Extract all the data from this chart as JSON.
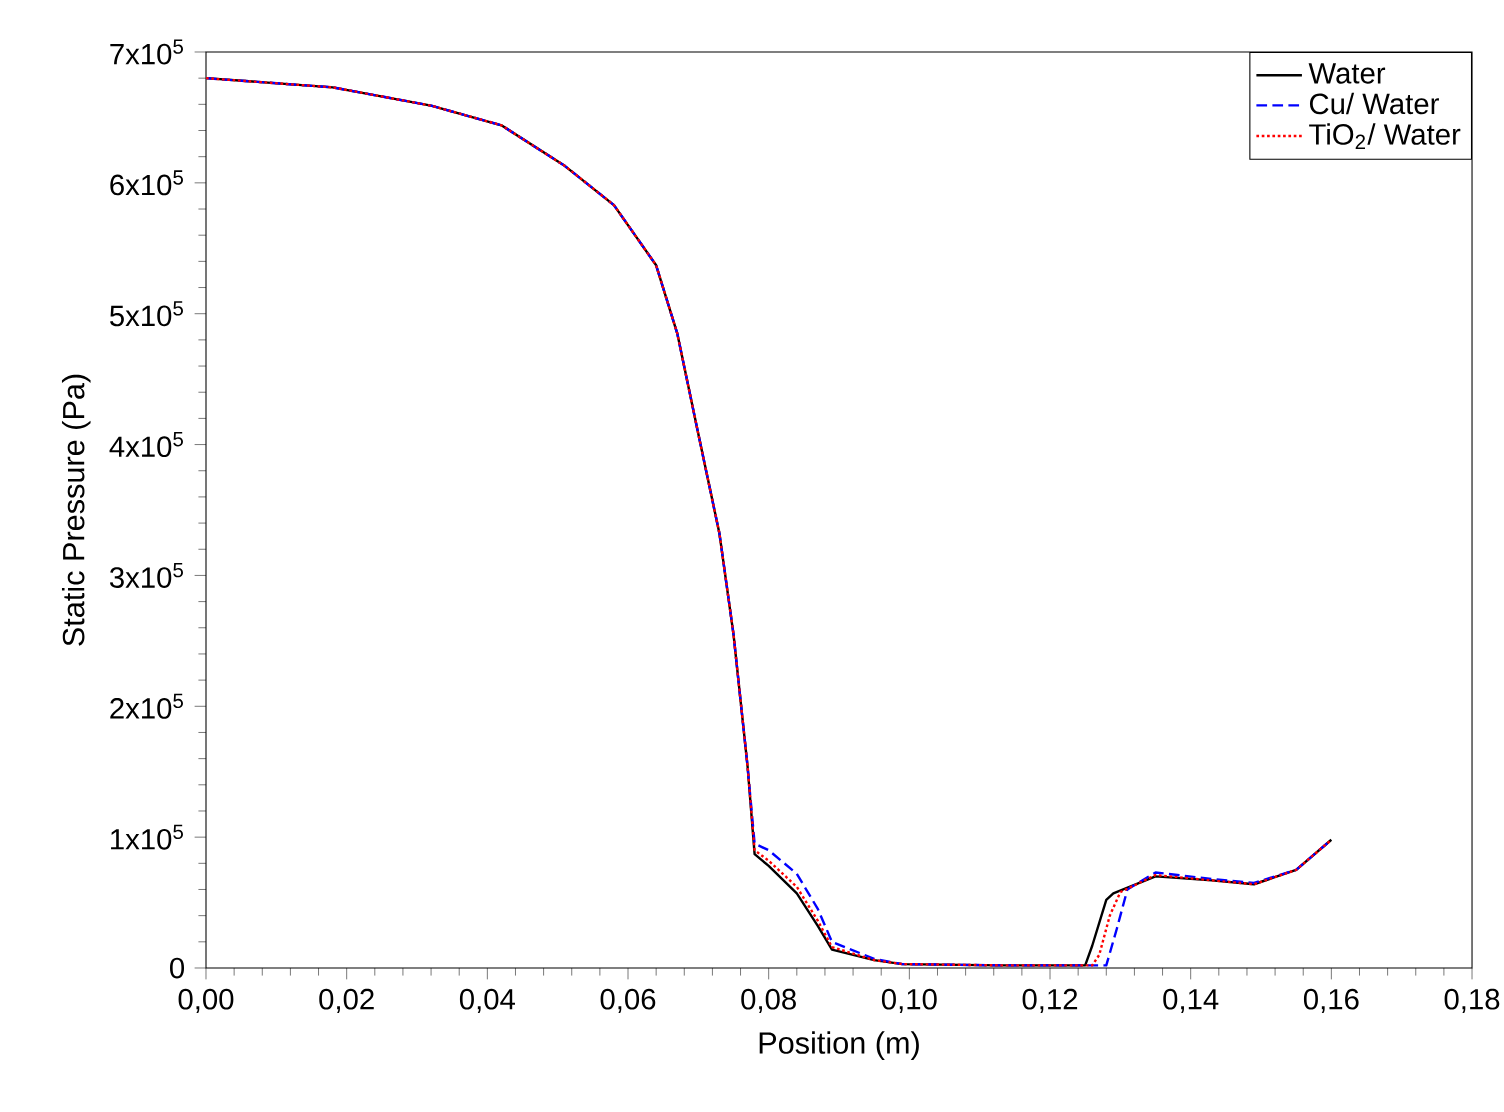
{
  "chart_data": {
    "type": "line",
    "xlabel": "Position (m)",
    "ylabel": "Static Pressure (Pa)",
    "xlim": [
      0,
      0.18
    ],
    "ylim": [
      0,
      700000
    ],
    "xticks": [
      {
        "value": 0,
        "label": "0,00"
      },
      {
        "value": 0.02,
        "label": "0,02"
      },
      {
        "value": 0.04,
        "label": "0,04"
      },
      {
        "value": 0.06,
        "label": "0,06"
      },
      {
        "value": 0.08,
        "label": "0,08"
      },
      {
        "value": 0.1,
        "label": "0,10"
      },
      {
        "value": 0.12,
        "label": "0,12"
      },
      {
        "value": 0.14,
        "label": "0,14"
      },
      {
        "value": 0.16,
        "label": "0,16"
      },
      {
        "value": 0.18,
        "label": "0,18"
      }
    ],
    "yticks": [
      {
        "value": 0,
        "label": "0"
      },
      {
        "value": 100000,
        "label": "1x10$^{5}$"
      },
      {
        "value": 200000,
        "label": "2x10$^{5}$"
      },
      {
        "value": 300000,
        "label": "3x10$^{5}$"
      },
      {
        "value": 400000,
        "label": "4x10$^{5}$"
      },
      {
        "value": 500000,
        "label": "5x10$^{5}$"
      },
      {
        "value": 600000,
        "label": "6x10$^{5}$"
      },
      {
        "value": 700000,
        "label": "7x10$^{5}$"
      }
    ],
    "legend": "top right",
    "grid": false,
    "series": [
      {
        "name": "Water",
        "color": "#000000",
        "line_style": "solid",
        "x": [
          0,
          0.018,
          0.032,
          0.042,
          0.051,
          0.058,
          0.064,
          0.067,
          0.07,
          0.073,
          0.075,
          0.077,
          0.078,
          0.08,
          0.084,
          0.087,
          0.089,
          0.095,
          0.099,
          0.113,
          0.125,
          0.126,
          0.128,
          0.129,
          0.135,
          0.143,
          0.149,
          0.155,
          0.16
        ],
        "values": [
          680000,
          673000,
          659000,
          644000,
          613000,
          583000,
          537000,
          485000,
          408000,
          332000,
          255000,
          154000,
          87000,
          78000,
          57000,
          32000,
          14000,
          6000,
          3000,
          2000,
          2000,
          17000,
          52000,
          57000,
          70000,
          67000,
          64000,
          75000,
          98000
        ]
      },
      {
        "name": "Cu/ Water",
        "color": "#0000ff",
        "line_style": "dashed",
        "x": [
          0,
          0.018,
          0.032,
          0.042,
          0.051,
          0.058,
          0.064,
          0.067,
          0.07,
          0.073,
          0.075,
          0.077,
          0.078,
          0.08,
          0.084,
          0.087,
          0.089,
          0.095,
          0.099,
          0.113,
          0.126,
          0.128,
          0.1295,
          0.131,
          0.135,
          0.143,
          0.149,
          0.155,
          0.16
        ],
        "values": [
          680000,
          673000,
          659000,
          644000,
          613000,
          583000,
          537000,
          485000,
          408000,
          332000,
          255000,
          154000,
          95000,
          90000,
          72000,
          45000,
          20000,
          7000,
          3000,
          2000,
          2000,
          2000,
          30000,
          60000,
          73000,
          68000,
          65000,
          75000,
          98000
        ]
      },
      {
        "name": "TiO$_{2}$/ Water",
        "color": "#ff0000",
        "line_style": "dotted",
        "x": [
          0,
          0.018,
          0.032,
          0.042,
          0.051,
          0.058,
          0.064,
          0.067,
          0.07,
          0.073,
          0.075,
          0.077,
          0.078,
          0.08,
          0.084,
          0.087,
          0.089,
          0.095,
          0.099,
          0.113,
          0.126,
          0.127,
          0.1285,
          0.13,
          0.135,
          0.143,
          0.149,
          0.155,
          0.16
        ],
        "values": [
          680000,
          673000,
          659000,
          644000,
          613000,
          583000,
          537000,
          485000,
          408000,
          332000,
          255000,
          154000,
          90000,
          82000,
          62000,
          36000,
          16000,
          6000,
          3000,
          2000,
          2000,
          10000,
          40000,
          58000,
          71000,
          67000,
          64000,
          75000,
          98000
        ]
      }
    ]
  }
}
